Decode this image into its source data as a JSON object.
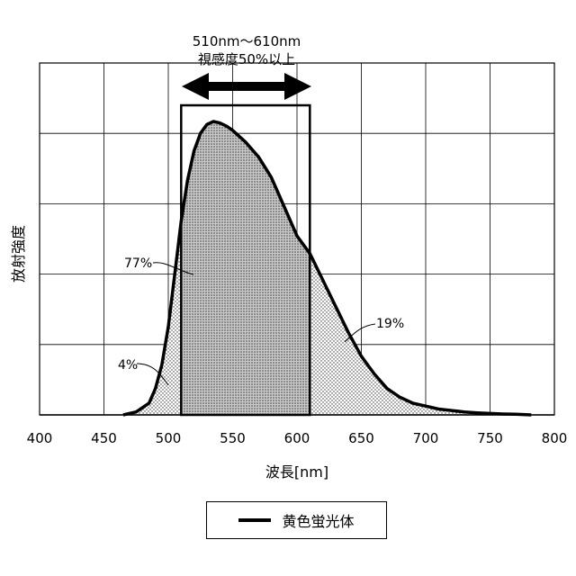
{
  "chart_data": {
    "type": "area",
    "xlabel": "波長[nm]",
    "ylabel": "放射強度",
    "xlim": [
      400,
      800
    ],
    "x_ticks": [
      400,
      450,
      500,
      550,
      600,
      650,
      700,
      750,
      800
    ],
    "x_tick_labels": [
      "400",
      "450",
      "500",
      "550",
      "600",
      "650",
      "700",
      "750",
      "800"
    ],
    "ylim": [
      0,
      1.0
    ],
    "y_gridlines": [
      0.2,
      0.4,
      0.6,
      0.8,
      1.0
    ],
    "y_tick_labels_shown": false,
    "grid": true,
    "series": [
      {
        "name": "黄色蛍光体",
        "x": [
          465,
          475,
          485,
          490,
          495,
          500,
          505,
          510,
          515,
          520,
          525,
          530,
          535,
          540,
          545,
          550,
          560,
          570,
          580,
          590,
          600,
          610,
          620,
          630,
          640,
          650,
          660,
          670,
          680,
          690,
          700,
          710,
          720,
          730,
          740,
          750,
          760,
          770,
          782
        ],
        "y": [
          0.0,
          0.01,
          0.04,
          0.09,
          0.17,
          0.3,
          0.48,
          0.66,
          0.8,
          0.9,
          0.96,
          0.99,
          1.0,
          0.995,
          0.985,
          0.97,
          0.93,
          0.88,
          0.81,
          0.71,
          0.61,
          0.55,
          0.46,
          0.37,
          0.28,
          0.2,
          0.14,
          0.09,
          0.06,
          0.04,
          0.03,
          0.02,
          0.015,
          0.01,
          0.007,
          0.005,
          0.003,
          0.002,
          0.0
        ]
      }
    ],
    "highlight_band": {
      "x_start": 510,
      "x_end": 610,
      "label_line1": "510nm〜610nm",
      "label_line2": "視感度50%以上"
    },
    "annotations": [
      {
        "text": "77%",
        "region": "510–610 nm"
      },
      {
        "text": "4%",
        "region": "< 510 nm"
      },
      {
        "text": "19%",
        "region": "> 610 nm"
      }
    ],
    "legend": {
      "position": "bottom-center",
      "entries": [
        "黄色蛍光体"
      ]
    }
  }
}
